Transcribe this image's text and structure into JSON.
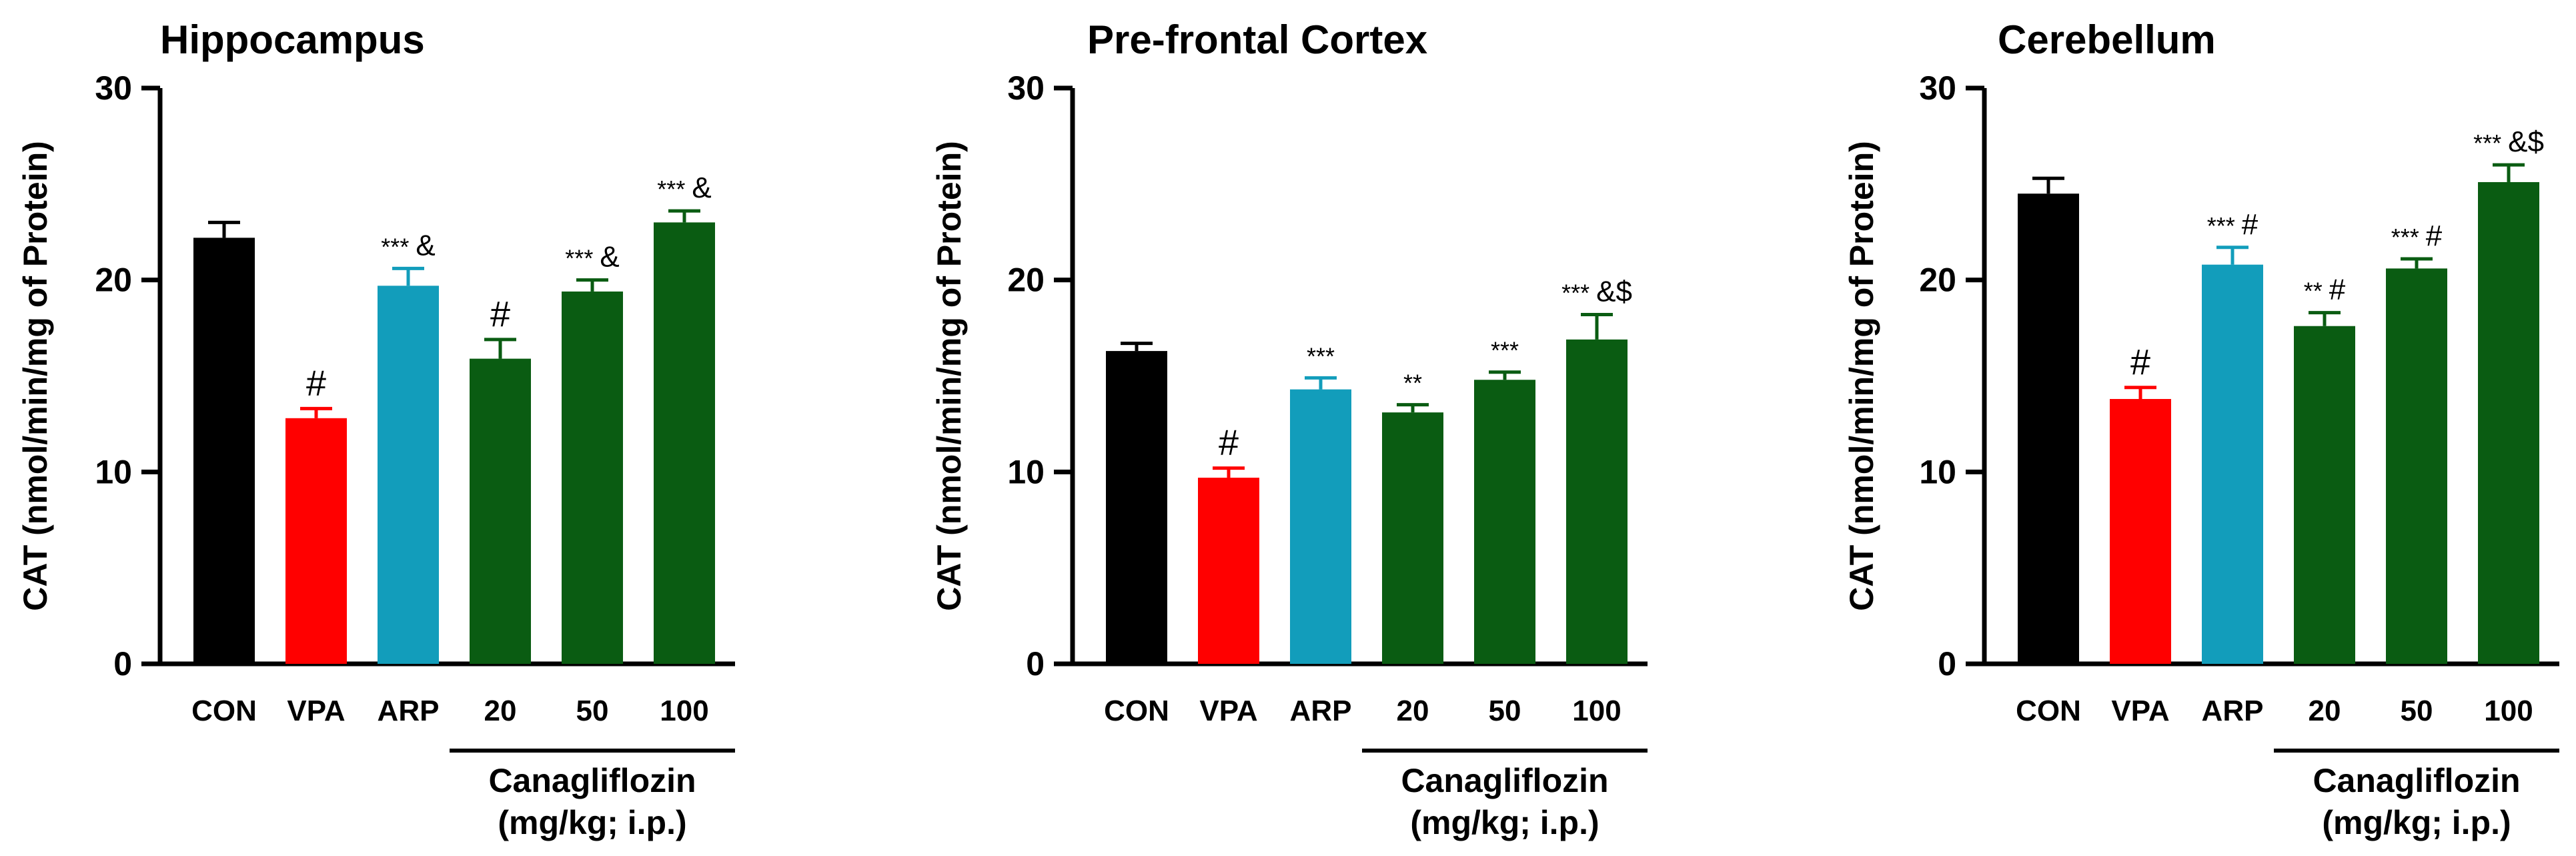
{
  "group_label": {
    "line1": "Canagliflozin",
    "line2": "(mg/kg; i.p.)"
  },
  "colors": {
    "CON": "#000000",
    "VPA": "#ff0000",
    "ARP": "#129dbb",
    "CANA": "#0a5c12"
  },
  "chart_data": [
    {
      "type": "bar",
      "title": "Hippocampus",
      "ylabel": "CAT (nmol/min/mg of Protein)",
      "ylim": [
        0,
        30
      ],
      "yticks": [
        "0",
        "10",
        "20",
        "30"
      ],
      "categories": [
        "CON",
        "VPA",
        "ARP",
        "20",
        "50",
        "100"
      ],
      "values": [
        22.2,
        12.8,
        19.7,
        15.9,
        19.4,
        23.0
      ],
      "errors": [
        0.8,
        0.5,
        0.9,
        1.0,
        0.6,
        0.6
      ],
      "annotations": [
        {
          "stars": "",
          "mark": ""
        },
        {
          "stars": "",
          "mark": "#"
        },
        {
          "stars": "***",
          "mark": "&"
        },
        {
          "stars": "",
          "mark": "#"
        },
        {
          "stars": "***",
          "mark": "&"
        },
        {
          "stars": "***",
          "mark": "&"
        }
      ]
    },
    {
      "type": "bar",
      "title": "Pre-frontal Cortex",
      "ylabel": "CAT (nmol/min/mg of Protein)",
      "ylim": [
        0,
        30
      ],
      "yticks": [
        "0",
        "10",
        "20",
        "30"
      ],
      "categories": [
        "CON",
        "VPA",
        "ARP",
        "20",
        "50",
        "100"
      ],
      "values": [
        16.3,
        9.7,
        14.3,
        13.1,
        14.8,
        16.9
      ],
      "errors": [
        0.4,
        0.5,
        0.6,
        0.4,
        0.4,
        1.3
      ],
      "annotations": [
        {
          "stars": "",
          "mark": ""
        },
        {
          "stars": "",
          "mark": "#"
        },
        {
          "stars": "***",
          "mark": ""
        },
        {
          "stars": "**",
          "mark": ""
        },
        {
          "stars": "***",
          "mark": ""
        },
        {
          "stars": "***",
          "mark": "&$"
        }
      ]
    },
    {
      "type": "bar",
      "title": "Cerebellum",
      "ylabel": "CAT (nmol/min/mg of Protein)",
      "ylim": [
        0,
        30
      ],
      "yticks": [
        "0",
        "10",
        "20",
        "30"
      ],
      "categories": [
        "CON",
        "VPA",
        "ARP",
        "20",
        "50",
        "100"
      ],
      "values": [
        24.5,
        13.8,
        20.8,
        17.6,
        20.6,
        25.1
      ],
      "errors": [
        0.8,
        0.6,
        0.9,
        0.7,
        0.5,
        0.9
      ],
      "annotations": [
        {
          "stars": "",
          "mark": ""
        },
        {
          "stars": "",
          "mark": "#"
        },
        {
          "stars": "***",
          "mark": "#"
        },
        {
          "stars": "**",
          "mark": "#"
        },
        {
          "stars": "***",
          "mark": "#"
        },
        {
          "stars": "***",
          "mark": "&$"
        }
      ]
    }
  ]
}
